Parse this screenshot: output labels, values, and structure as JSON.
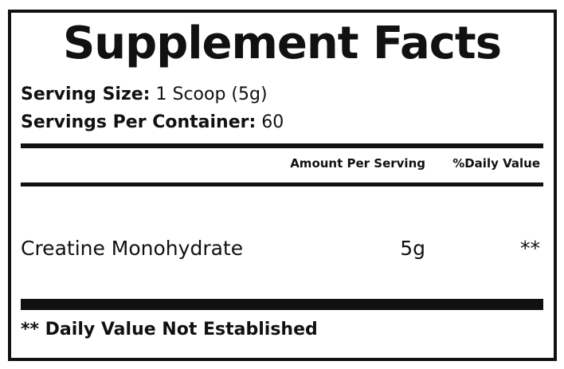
{
  "label": {
    "title": "Supplement Facts",
    "serving_size": {
      "label": "Serving Size:",
      "value": "1 Scoop (5g)"
    },
    "servings_per_container": {
      "label": "Servings Per Container:",
      "value": "60"
    },
    "columns": [
      "Amount Per Serving",
      "%Daily Value"
    ],
    "rows": [
      [
        "Creatine Monohydrate",
        "5g",
        "**"
      ]
    ],
    "footnote": "** Daily Value Not Established"
  }
}
